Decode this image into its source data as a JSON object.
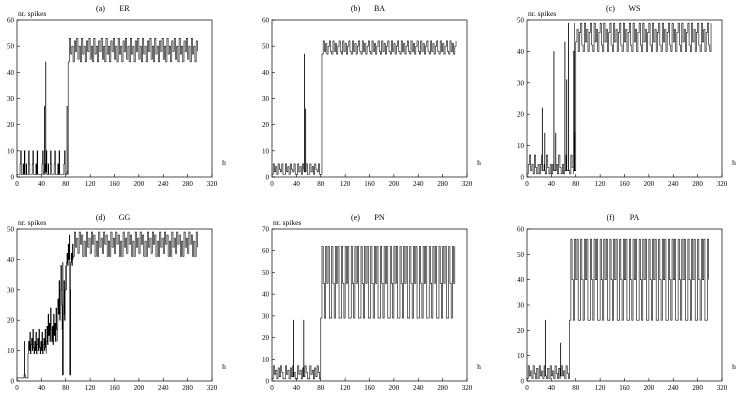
{
  "chart_data": [
    {
      "type": "line",
      "panel_label": "(a)",
      "name": "ER",
      "ylabel": "nr. spikes",
      "xlabel": "h",
      "xlim": [
        0,
        320
      ],
      "ylim": [
        0,
        60
      ],
      "xticks": [
        0,
        40,
        80,
        120,
        160,
        200,
        240,
        280,
        320
      ],
      "yticks": [
        0,
        10,
        20,
        30,
        40,
        50,
        60
      ],
      "regimes": [
        {
          "x_start": 0,
          "x_end": 84,
          "step": 1,
          "pattern": [
            1,
            1,
            1,
            1,
            1,
            5,
            10,
            1,
            1,
            1,
            5,
            1,
            10,
            1,
            1,
            5,
            1,
            1,
            1,
            10,
            5,
            1,
            1,
            1,
            1,
            5,
            10,
            1,
            1,
            1,
            1,
            5,
            1,
            10,
            1,
            1
          ]
        },
        {
          "x_start": 84,
          "x_end": 296,
          "step": 2,
          "pattern": [
            44,
            53,
            47,
            50,
            44,
            52,
            48,
            53,
            45,
            50
          ]
        }
      ],
      "spikes": [
        {
          "x": 47,
          "y": 44
        },
        {
          "x": 45,
          "y": 27
        },
        {
          "x": 82,
          "y": 27
        }
      ]
    },
    {
      "type": "line",
      "panel_label": "(b)",
      "name": "BA",
      "ylabel": "",
      "xlabel": "h",
      "xlim": [
        0,
        320
      ],
      "ylim": [
        0,
        60
      ],
      "xticks": [
        0,
        40,
        80,
        120,
        160,
        200,
        240,
        280,
        320
      ],
      "yticks": [
        0,
        10,
        20,
        30,
        40,
        50,
        60
      ],
      "regimes": [
        {
          "x_start": 0,
          "x_end": 80,
          "step": 2,
          "pattern": [
            1,
            5,
            2,
            4,
            1,
            5,
            3,
            2,
            5,
            1
          ]
        },
        {
          "x_start": 82,
          "x_end": 302,
          "step": 2,
          "pattern": [
            47,
            52,
            48,
            51,
            47,
            50,
            52,
            48
          ]
        }
      ],
      "spikes": [
        {
          "x": 53,
          "y": 47
        },
        {
          "x": 55,
          "y": 26
        }
      ]
    },
    {
      "type": "line",
      "panel_label": "(c)",
      "name": "WS",
      "ylabel": "nr. spikes",
      "xlabel": "h",
      "xlim": [
        0,
        320
      ],
      "ylim": [
        0,
        50
      ],
      "xticks": [
        0,
        40,
        80,
        120,
        160,
        200,
        240,
        280,
        320
      ],
      "yticks": [
        0,
        10,
        20,
        30,
        40,
        50
      ],
      "regimes": [
        {
          "x_start": 0,
          "x_end": 76,
          "step": 2,
          "pattern": [
            1,
            4,
            7,
            2,
            4,
            1,
            7,
            3,
            1,
            4
          ]
        },
        {
          "x_start": 76,
          "x_end": 302,
          "step": 2,
          "pattern": [
            40,
            49,
            43,
            47,
            40,
            46,
            49,
            42
          ]
        }
      ],
      "spikes": [
        {
          "x": 25,
          "y": 22
        },
        {
          "x": 29,
          "y": 14
        },
        {
          "x": 44,
          "y": 40
        },
        {
          "x": 47,
          "y": 14
        },
        {
          "x": 62,
          "y": 43
        },
        {
          "x": 65,
          "y": 31
        },
        {
          "x": 68,
          "y": 49
        },
        {
          "x": 78,
          "y": 14
        }
      ]
    },
    {
      "type": "line",
      "panel_label": "(d)",
      "name": "GG",
      "ylabel": "nr. spikes",
      "xlabel": "h",
      "xlim": [
        0,
        320
      ],
      "ylim": [
        0,
        50
      ],
      "xticks": [
        0,
        40,
        80,
        120,
        160,
        200,
        240,
        280,
        320
      ],
      "yticks": [
        0,
        10,
        20,
        30,
        40,
        50
      ],
      "regimes": [
        {
          "x_start": 0,
          "x_end": 18,
          "step": 2,
          "pattern": [
            1,
            1,
            1,
            1
          ]
        },
        {
          "x_start": 18,
          "x_end": 48,
          "step": 1,
          "pattern": [
            9,
            13,
            10,
            16,
            9,
            12,
            14,
            10,
            17,
            11
          ]
        },
        {
          "x_start": 48,
          "x_end": 66,
          "step": 1,
          "pattern": [
            13,
            18,
            12,
            22,
            15,
            19,
            13,
            24,
            17
          ]
        },
        {
          "x_start": 66,
          "x_end": 80,
          "step": 1,
          "pattern": [
            17,
            27,
            22,
            33,
            20,
            30,
            38,
            25
          ]
        },
        {
          "x_start": 80,
          "x_end": 92,
          "step": 1,
          "pattern": [
            30,
            39,
            42,
            38,
            45,
            40,
            48
          ]
        },
        {
          "x_start": 92,
          "x_end": 296,
          "step": 2,
          "pattern": [
            41,
            49,
            44,
            47,
            42,
            49,
            45,
            48,
            41,
            46
          ]
        }
      ],
      "spikes": [
        {
          "x": 12,
          "y": 13
        },
        {
          "x": 75,
          "y": 39
        },
        {
          "x": 87,
          "y": 30
        }
      ]
    },
    {
      "type": "line",
      "panel_label": "(e)",
      "name": "PN",
      "ylabel": "nr. spikes",
      "xlabel": "h",
      "xlim": [
        0,
        320
      ],
      "ylim": [
        0,
        70
      ],
      "xticks": [
        0,
        40,
        80,
        120,
        160,
        200,
        240,
        280,
        320
      ],
      "yticks": [
        0,
        10,
        20,
        30,
        40,
        50,
        60,
        70
      ],
      "regimes": [
        {
          "x_start": 0,
          "x_end": 80,
          "step": 2,
          "pattern": [
            1,
            7,
            3,
            5,
            1,
            6,
            2,
            7,
            4,
            1
          ]
        },
        {
          "x_start": 80,
          "x_end": 300,
          "step": 2,
          "pattern": [
            29,
            62,
            45,
            29,
            62,
            45,
            62,
            29
          ]
        }
      ],
      "spikes": [
        {
          "x": 35,
          "y": 28
        },
        {
          "x": 52,
          "y": 28
        }
      ]
    },
    {
      "type": "line",
      "panel_label": "(f)",
      "name": "PA",
      "ylabel": "",
      "xlabel": "h",
      "xlim": [
        0,
        320
      ],
      "ylim": [
        0,
        60
      ],
      "xticks": [
        0,
        40,
        80,
        120,
        160,
        200,
        240,
        280,
        320
      ],
      "yticks": [
        0,
        10,
        20,
        30,
        40,
        50,
        60
      ],
      "regimes": [
        {
          "x_start": 0,
          "x_end": 70,
          "step": 2,
          "pattern": [
            1,
            6,
            2,
            4,
            1,
            6,
            3,
            1,
            5
          ]
        },
        {
          "x_start": 70,
          "x_end": 298,
          "step": 2,
          "pattern": [
            24,
            56,
            40,
            24,
            56,
            40,
            56,
            24
          ]
        }
      ],
      "spikes": [
        {
          "x": 30,
          "y": 24
        },
        {
          "x": 55,
          "y": 15
        }
      ]
    }
  ]
}
